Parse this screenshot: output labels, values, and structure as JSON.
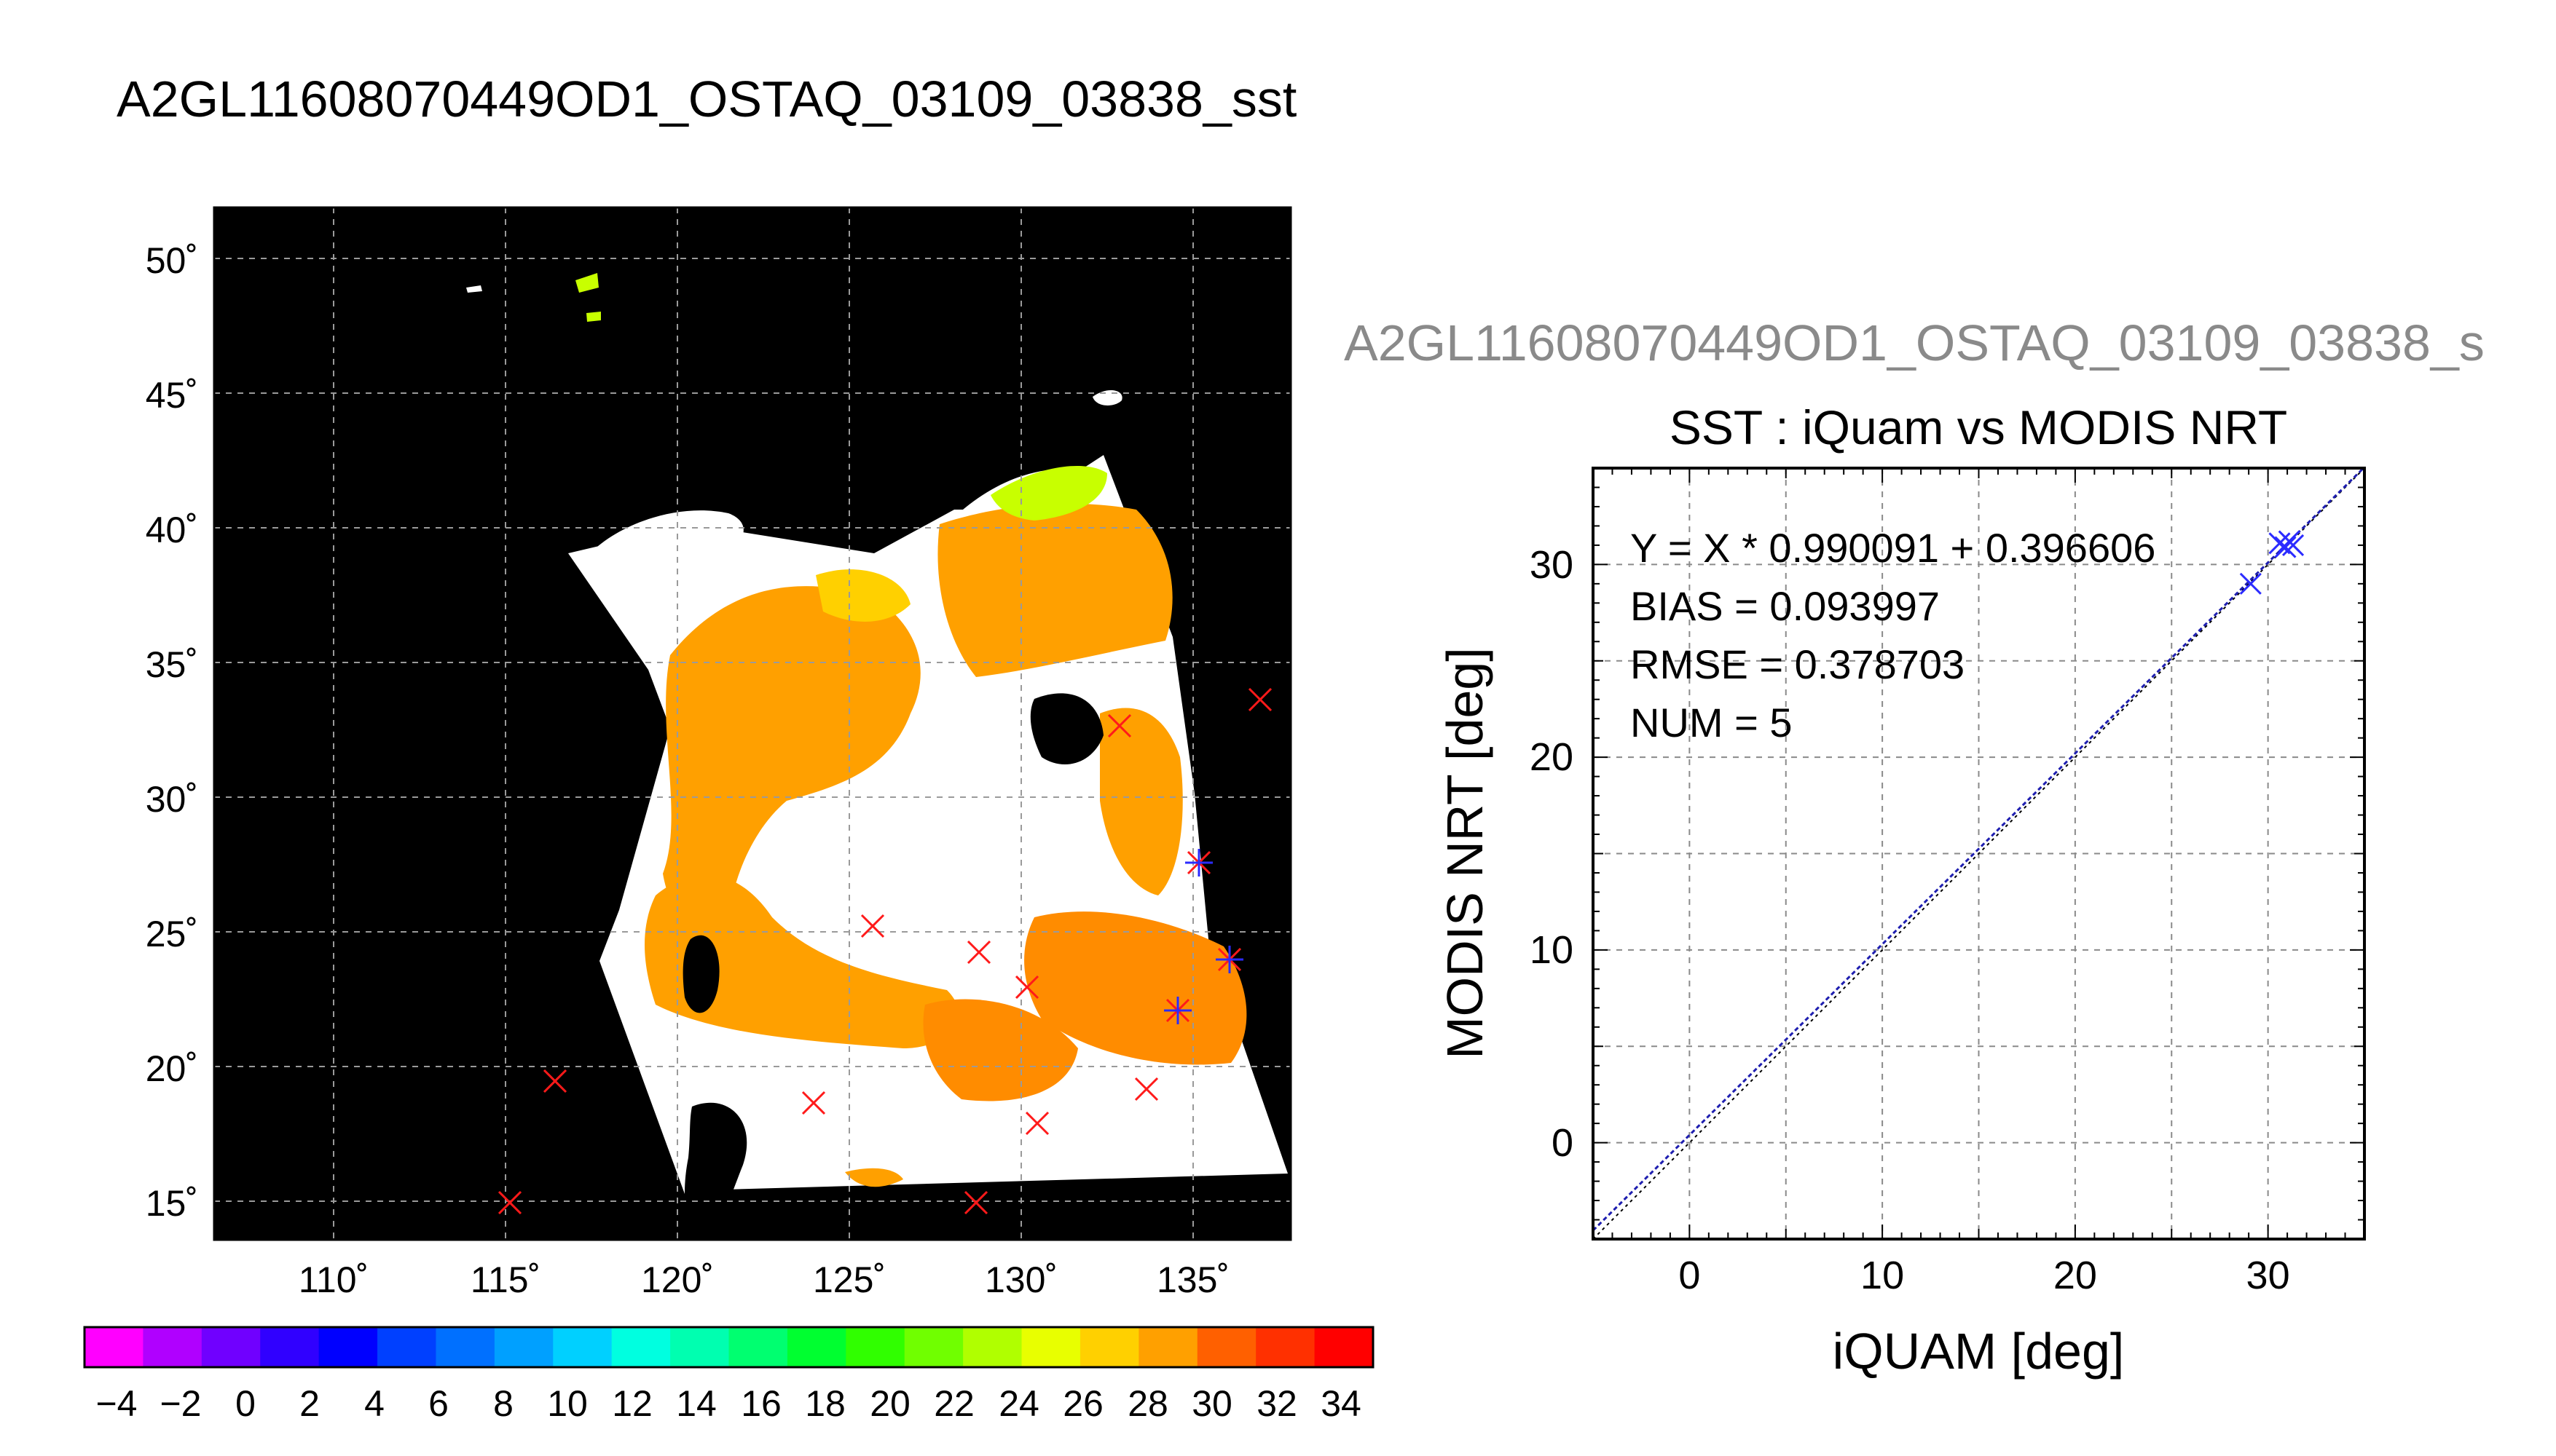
{
  "map_panel": {
    "title": "A2GL11608070449OD1_OSTAQ_03109_03838_sst",
    "lon_labels": [
      "110˚",
      "115˚",
      "120˚",
      "125˚",
      "130˚",
      "135˚"
    ],
    "lat_labels": [
      "50˚",
      "45˚",
      "40˚",
      "35˚",
      "30˚",
      "25˚",
      "20˚",
      "15˚"
    ],
    "colorbar_labels": [
      "−4",
      "−2",
      "0",
      "2",
      "4",
      "6",
      "8",
      "10",
      "12",
      "14",
      "16",
      "18",
      "20",
      "22",
      "24",
      "26",
      "28",
      "30",
      "32",
      "34"
    ],
    "colorbar_colors": [
      "#ff00ff",
      "#b000ff",
      "#7000ff",
      "#3000ff",
      "#0000ff",
      "#0040ff",
      "#0070ff",
      "#00a0ff",
      "#00d0ff",
      "#00ffe0",
      "#00ffb0",
      "#00ff70",
      "#00ff30",
      "#30ff00",
      "#70ff00",
      "#b0ff00",
      "#e8ff00",
      "#ffd000",
      "#ffa000",
      "#ff6000",
      "#ff3000",
      "#ff0000"
    ],
    "colors": {
      "background": "#000000",
      "cloud": "#ffffff",
      "sst_warm": "#ffa000",
      "sst_hot": "#ff6000",
      "sst_mild": "#ffd000",
      "sst_cool": "#c8ff00",
      "grid": "#9a9a9a"
    }
  },
  "chart_data": {
    "type": "scatter",
    "subtitle": "A2GL11608070449OD1_OSTAQ_03109_03838_s",
    "title": "SST : iQuam vs MODIS NRT",
    "xlabel": "iQUAM [deg]",
    "ylabel": "MODIS NRT [deg]",
    "xlim": [
      -5,
      35
    ],
    "ylim": [
      -5,
      35
    ],
    "xticks": [
      0,
      10,
      20,
      30
    ],
    "yticks": [
      0,
      10,
      20,
      30
    ],
    "xtick_labels": [
      "0",
      "10",
      "20",
      "30"
    ],
    "ytick_labels": [
      "0",
      "10",
      "20",
      "30"
    ],
    "grid": true,
    "annotations": [
      "Y = X * 0.990091 + 0.396606",
      "BIAS = 0.093997",
      "RMSE = 0.378703",
      "NUM = 5"
    ],
    "fit_line": {
      "slope": 0.990091,
      "intercept": 0.396606
    },
    "points": {
      "x": [
        29.1,
        30.6,
        30.9,
        31.1,
        31.3
      ],
      "y": [
        29.0,
        31.1,
        30.9,
        31.2,
        31.0
      ]
    },
    "colors": {
      "points": "#2b2bff",
      "fit": "#1e1eb0",
      "identity": "#000000"
    }
  }
}
